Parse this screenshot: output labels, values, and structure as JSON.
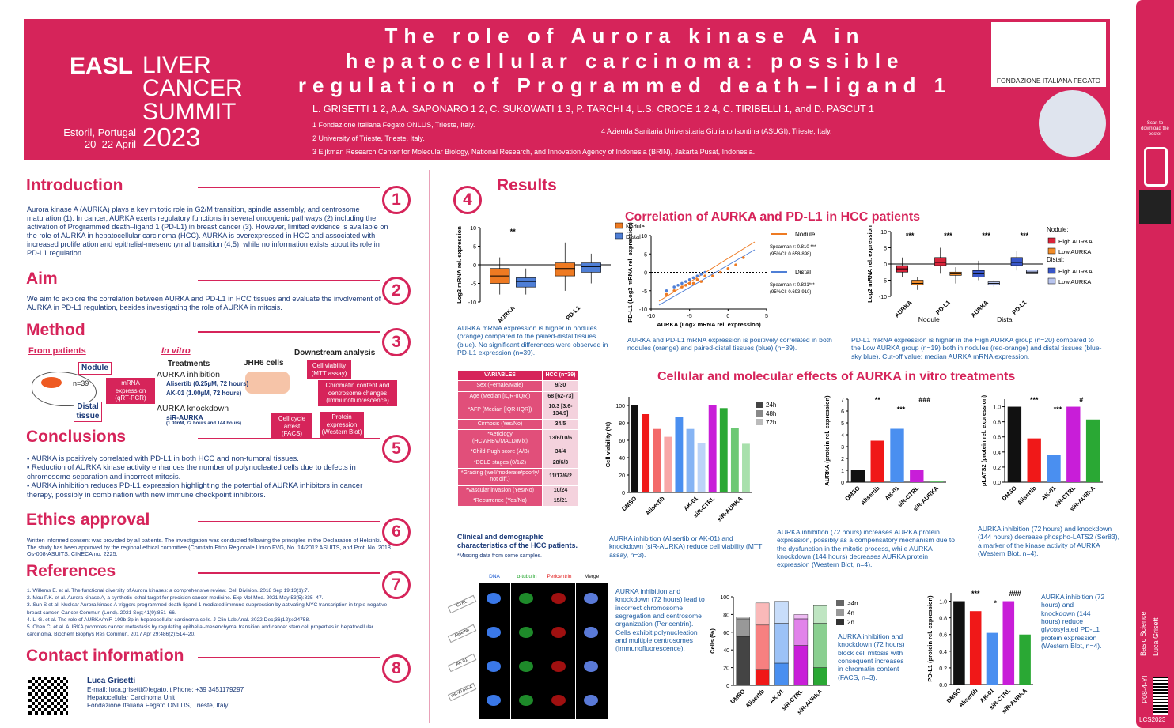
{
  "header": {
    "title": "The role of Aurora kinase A in hepatocellular carcinoma: possible regulation of Programmed death–ligand 1",
    "authors": "L. GRISETTI 1 2, A.A. SAPONARO 1 2, C. SUKOWATI 1 3, P. TARCHI 4, L.S. CROCÈ 1 2 4, C. TIRIBELLI 1, and D. PASCUT 1",
    "affiliations": [
      "1 Fondazione Italiana Fegato ONLUS, Trieste, Italy.",
      "4 Azienda Sanitaria Universitaria Giuliano Isontina (ASUGI), Trieste, Italy.",
      "2 University of Trieste, Trieste, Italy.",
      "3 Eijkman Research Center for Molecular Biology, National Research, and Innovation Agency of Indonesia (BRIN), Jakarta Pusat, Indonesia."
    ],
    "logo": {
      "name": "EASL",
      "event": "LIVER CANCER SUMMIT",
      "place": "Estoril, Portugal",
      "dates": "20–22 April",
      "year": "2023"
    },
    "partner": "FONDAZIONE ITALIANA FEGATO"
  },
  "side": {
    "scan": "Scan to download the poster",
    "category": "Basic Science",
    "author": "Luca Grisetti",
    "code": "P08-4-YI",
    "event": "LCS2023"
  },
  "sections": [
    {
      "number": "1",
      "title": "Introduction",
      "body": "Aurora kinase A (AURKA) plays a key mitotic role in G2/M transition, spindle assembly, and centrosome maturation (1). In cancer, AURKA exerts regulatory functions in several oncogenic pathways (2) including the activation of Programmed death–ligand 1 (PD-L1) in breast cancer (3). However, limited evidence is available on the role of AURKA in hepatocellular carcinoma (HCC). AURKA is overexpressed in HCC and associated with increased proliferation and epithelial-mesenchymal transition (4,5), while no information exists about its role in PD-L1 regulation."
    },
    {
      "number": "2",
      "title": "Aim",
      "body": "We aim to explore the correlation between AURKA and PD-L1 in HCC tissues and evaluate the involvement of AURKA in PD-L1 regulation, besides investigating the role of AURKA in mitosis."
    },
    {
      "number": "3",
      "title": "Method",
      "body": ""
    },
    {
      "number": "5",
      "title": "Conclusions",
      "body": "▪ AURKA is positively correlated with PD-L1 in both HCC and non-tumoral tissues.\n▪ Reduction of AURKA kinase activity enhances the number of polynucleated cells due to defects in chromosome separation and incorrect mitosis.\n▪ AURKA inhibition reduces PD-L1 expression highlighting the potential of AURKA inhibitors in cancer therapy, possibly in combination with new immune checkpoint inhibitors."
    },
    {
      "number": "6",
      "title": "Ethics approval",
      "body": "Written informed consent was provided by all patients. The investigation was conducted following the principles in the Declaration of Helsinki. The study has been approved by the regional ethical committee (Comitato Etico Regionale Unico FVG, No. 14/2012 ASUITS, and Prot. No. 2018 Os-008-ASUITS, CINECA no. 2225."
    },
    {
      "number": "7",
      "title": "References",
      "body": "1.   Willems E. et al. The functional diversity of Aurora kinases: a comprehensive review. Cell Division. 2018 Sep 19;13(1):7.\n2.   Mou P.K. et al. Aurora kinase A, a synthetic lethal target for precision cancer medicine. Exp Mol Med. 2021 May;53(5):835–47.\n3.   Sun S et al. Nuclear Aurora kinase A triggers programmed death-ligand 1-mediated immune suppression by activating MYC transcription in triple-negative breast cancer. Cancer Commun (Lond). 2021 Sep;41(9):851–66.\n4.   Li G. et al. The role of AURKA/miR-199b-3p in hepatocellular carcinoma cells. J Clin Lab Anal. 2022 Dec;36(12):e24758.\n5.   Chen C. et al. AURKA promotes cancer metastasis by regulating epithelial-mesenchymal transition and cancer stem cell properties in hepatocellular carcinoma. Biochem Biophys Res Commun. 2017 Apr 29;486(2):514–20."
    },
    {
      "number": "8",
      "title": "Contact information",
      "body": "E-mail: luca.grisetti@fegato.it          Phone: +39 3451179297\nHepatocellular Carcinoma Unit\nFondazione Italiana Fegato ONLUS, Trieste, Italy."
    }
  ],
  "contact_name": "Luca Grisetti",
  "method": [
    "From patients",
    "In vitro",
    "Treatments",
    "JHH6 cells",
    "Downstream  analysis",
    "Nodule",
    "n=39",
    "Distal tissue",
    "mRNA expression (qRT-PCR)",
    "AURKA inhibition",
    "Alisertib (0.25µM, 72 hours)",
    "AK-01 (1.00µM, 72 hours)",
    "AURKA knockdown",
    "siR-AURKA",
    "(1.00nM, 72 hours and 144 hours)",
    "Cell viability (MTT assay)",
    "Chromatin content and centrosome changes (Immunofluorescence)",
    "Cell cycle arrest (FACS)",
    "Protein expression (Western Blot)"
  ],
  "results": {
    "number": "4",
    "title": "Results",
    "sub1": "Correlation of AURKA and PD-L1 in HCC patients",
    "sub2": "Cellular and molecular effects of AURKA in vitro treatments",
    "captions": [
      "AURKA mRNA expression is higher in nodules (orange) compared to the paired-distal tissues (blue). No significant differences were observed in PD-L1 expression (n=39).",
      "AURKA and PD-L1 mRNA expression is positively correlated in both nodules (orange) and paired-distal tissues (blue) (n=39).",
      "PD-L1 mRNA expression is higher in the High AURKA group (n=20) compared to the Low AURKA group (n=19) both in nodules (red-orange) and distal tissues (blue-sky blue). Cut-off value: median AURKA mRNA expression.",
      "AURKA inhibition (Alisertib or AK-01) and knockdown (siR-AURKA) reduce cell viability (MTT assay, n=3).",
      "AURKA inhibition (72 hours) increases AURKA protein expression, possibly as a compensatory mechanism due to the dysfunction in the mitotic process, while AURKA knockdown (144 hours) decreases AURKA protein expression (Western Blot, n=4).",
      "AURKA inhibition (72 hours) and knockdown (144 hours) decrease phospho-LATS2 (Ser83), a marker of the kinase activity of AURKA (Western Blot, n=4).",
      "AURKA inhibition and knockdown (72 hours) lead to incorrect chromosome segregation and centrosome organization (Pericentrin). Cells exhibit polynucleation and multiple centrosomes (Immunofluorescence).",
      "AURKA inhibition and knockdown (72 hours) block cell mitosis with consequent increases in chromatin content (FACS, n=3).",
      "AURKA inhibition (72 hours) and knockdown (144 hours) reduce glycosylated PD-L1 protein expression (Western Blot, n=4)."
    ],
    "table_caption": "Clinical and demographic characteristics of the HCC patients.",
    "table_note": "*Missing data from some samples.",
    "table": [
      [
        "VARIABLES",
        "HCC (n=39)"
      ],
      [
        "Sex (Female/Male)",
        "9/30"
      ],
      [
        "Age (Median [IQR-IIQR])",
        "68 [62-73]"
      ],
      [
        "*AFP (Median [IQR-IIQR])",
        "10.3 [3.6-134.9]"
      ],
      [
        "Cirrhosis (Yes/No)",
        "34/5"
      ],
      [
        "*Aetiology (HCV/HBV/MALD/Mix)",
        "13/6/10/6"
      ],
      [
        "*Child-Pugh score (A/B)",
        "34/4"
      ],
      [
        "*BCLC stages (0/1/2)",
        "28/6/3"
      ],
      [
        "*Grading (well/moderate/poorly/ not diff.)",
        "11/17/6/2"
      ],
      [
        "*Vascular invasion (Yes/No)",
        "10/24"
      ],
      [
        "*Recurrence (Yes/No)",
        "15/21"
      ]
    ],
    "micro_cols": [
      "DNA",
      "α-tubulin",
      "Pericentrin",
      "Merge"
    ],
    "micro_rows": [
      "CTRL",
      "Alisertib",
      "AK-01",
      "siR-AURKA"
    ]
  },
  "chart_data": [
    {
      "type": "box",
      "ylabel": "Log2 mRNA rel. expression",
      "categories": [
        "AURKA",
        "PD-L1"
      ],
      "ylim": [
        -10,
        10
      ],
      "yticks": [
        -10,
        -5,
        0,
        5,
        10
      ],
      "annotations": [
        "**"
      ],
      "series": [
        {
          "name": "Nodule",
          "color": "#ee7a22",
          "values": [
            [
              -8,
              -5,
              -3,
              -1,
              2
            ],
            [
              -7,
              -3,
              -1,
              0.5,
              6
            ]
          ]
        },
        {
          "name": "Distal",
          "color": "#4f7fd6",
          "values": [
            [
              -8,
              -6,
              -4.5,
              -3.5,
              -1
            ],
            [
              -5,
              -2,
              -0.5,
              0.5,
              3
            ]
          ]
        }
      ]
    },
    {
      "type": "scatter",
      "ylabel": "PD-L1 (Log2 mRNA rel. expression)",
      "xlabel": "AURKA (Log2 mRNA rel. expression)",
      "xlim": [
        -10,
        5
      ],
      "xticks": [
        -10,
        -5,
        0,
        5
      ],
      "ylim": [
        -10,
        10
      ],
      "yticks": [
        -10,
        -5,
        0,
        5,
        10
      ],
      "annotations": [
        "Spearman r: 0.810 ***",
        "(95%CI: 0.658-898)",
        "Spearman r: 0.831***",
        "(95%CI: 0.693-910)"
      ],
      "series": [
        {
          "name": "Nodule",
          "color": "#ee7a22",
          "x": [
            -8,
            -7,
            -6,
            -5.5,
            -5,
            -4.5,
            -4,
            -3.5,
            -3,
            -2,
            -1,
            0,
            1,
            2
          ],
          "values": [
            -6,
            -5,
            -4,
            -3.5,
            -3,
            -3,
            -2,
            -2.5,
            -1,
            -1,
            0,
            1,
            2,
            4
          ]
        },
        {
          "name": "Distal",
          "color": "#4f7fd6",
          "x": [
            -8,
            -7,
            -6.5,
            -6,
            -5.5,
            -5,
            -4.5,
            -4,
            -3.5,
            -3
          ],
          "values": [
            -5,
            -4,
            -3.5,
            -3,
            -2.5,
            -2,
            -1.5,
            -1,
            -0.5,
            0
          ]
        }
      ]
    },
    {
      "type": "box",
      "ylabel": "Log2 mRNA rel. expression",
      "categories": [
        "AURKA",
        "PD-L1",
        "AURKA",
        "PD-L1"
      ],
      "groups": [
        "Nodule",
        "Distal"
      ],
      "ylim": [
        -10,
        10
      ],
      "yticks": [
        -10,
        -5,
        0,
        5,
        10
      ],
      "annotations": [
        "***",
        "***",
        "***",
        "***"
      ],
      "legend_titles": [
        "Nodule:",
        "Distal:"
      ],
      "series": [
        {
          "name": "High AURKA",
          "color": "#d8243a",
          "values": [
            [
              -4,
              -2.5,
              -1.5,
              -0.5,
              2
            ],
            [
              -3,
              -0.5,
              0.5,
              2,
              5
            ],
            null,
            null
          ]
        },
        {
          "name": "Low AURKA",
          "color": "#f08c2a",
          "values": [
            [
              -8,
              -6.5,
              -6,
              -5,
              -4
            ],
            [
              -6,
              -3.5,
              -3,
              -2.5,
              -1
            ],
            null,
            null
          ]
        },
        {
          "name": "High AURKA",
          "color": "#3856c8",
          "values": [
            null,
            null,
            [
              -5,
              -4,
              -3,
              -2,
              1
            ],
            [
              -2,
              -0.5,
              0.5,
              2,
              4
            ]
          ]
        },
        {
          "name": "Low AURKA",
          "color": "#b8c4ee",
          "values": [
            null,
            null,
            [
              -7,
              -6.5,
              -6,
              -5.5,
              -5
            ],
            [
              -5,
              -3,
              -2.5,
              -1.8,
              -1
            ]
          ]
        }
      ]
    },
    {
      "type": "bar",
      "ylabel": "Cell viability (%)",
      "categories": [
        "DMSO",
        null,
        "Alisertib",
        null,
        null,
        "AK-01",
        null,
        "siR-CTRL",
        null,
        "siR-AURKA",
        null
      ],
      "values": [
        100,
        90,
        73,
        64,
        87,
        73,
        57,
        100,
        97,
        74,
        56
      ],
      "colors": [
        "#111",
        "#f01818",
        "#f36a6a",
        "#f8a8a8",
        "#4a8ff0",
        "#86b4f4",
        "#bcd4f8",
        "#c81ed8",
        "#2aa834",
        "#6cc874",
        "#a8e0ac"
      ],
      "ylim": [
        0,
        110
      ],
      "yticks": [
        0,
        20,
        40,
        60,
        80,
        100
      ],
      "legend": [
        "24h",
        "48h",
        "72h"
      ]
    },
    {
      "type": "bar",
      "ylabel": "AURKA (protein rel. expression)",
      "categories": [
        "DMSO",
        "Alisertib",
        "AK-01",
        "siR-CTRL",
        "siR-AURKA"
      ],
      "values": [
        1,
        3.5,
        4.5,
        1,
        0.05
      ],
      "colors": [
        "#111",
        "#f01818",
        "#4a8ff0",
        "#c81ed8",
        "#2aa834"
      ],
      "ylim": [
        0,
        7
      ],
      "yticks": [
        0,
        1,
        2,
        3,
        4,
        5,
        6,
        7
      ],
      "annotations": [
        "**",
        "***",
        "###"
      ]
    },
    {
      "type": "bar",
      "ylabel": "pLATS2 (protein rel. expression)",
      "categories": [
        "DMSO",
        "Alisertib",
        "AK-01",
        "siR-CTRL",
        "siR-AURKA"
      ],
      "values": [
        1,
        0.58,
        0.36,
        1,
        0.83
      ],
      "colors": [
        "#111",
        "#f01818",
        "#4a8ff0",
        "#c81ed8",
        "#2aa834"
      ],
      "ylim": [
        0,
        1.1
      ],
      "yticks": [
        {
          "value": 0,
          "label": "0.0"
        },
        0.2,
        0.4,
        0.6,
        0.8,
        {
          "value": 1,
          "label": "1.0"
        }
      ],
      "annotations": [
        "***",
        "***",
        "#"
      ]
    },
    {
      "type": "stacked",
      "ylabel": "Cells (%)",
      "categories": [
        "DMSO",
        "Alisertib",
        "AK-01",
        "siR-CTRL",
        "siR-AURKA"
      ],
      "colors": [
        "#444",
        "#f01818",
        "#4a8ff0",
        "#c81ed8",
        "#2aa834"
      ],
      "ylim": [
        0,
        100
      ],
      "yticks": [
        0,
        20,
        40,
        60,
        80,
        100
      ],
      "series": [
        {
          "name": "2n",
          "color": "#333",
          "values": [
            55,
            18,
            25,
            45,
            20
          ]
        },
        {
          "name": "4n",
          "color": "#999",
          "values": [
            20,
            50,
            45,
            30,
            50
          ]
        },
        {
          "name": ">4n",
          "color": "#666",
          "values": [
            2,
            25,
            25,
            5,
            20
          ]
        }
      ]
    },
    {
      "type": "bar",
      "ylabel": "PD-L1 (protein rel. expression)",
      "categories": [
        "DMSO",
        "Alisertib",
        "AK-01",
        "siR-CTRL",
        "siR-AURKA"
      ],
      "values": [
        1,
        0.88,
        0.62,
        1,
        0.6
      ],
      "colors": [
        "#111",
        "#f01818",
        "#4a8ff0",
        "#c81ed8",
        "#2aa834"
      ],
      "ylim": [
        0,
        1.1
      ],
      "yticks": [
        {
          "value": 0,
          "label": "0.0"
        },
        0.2,
        0.4,
        0.6,
        0.8,
        {
          "value": 1,
          "label": "1.0"
        }
      ],
      "annotations": [
        "***",
        "*",
        "###"
      ]
    }
  ]
}
